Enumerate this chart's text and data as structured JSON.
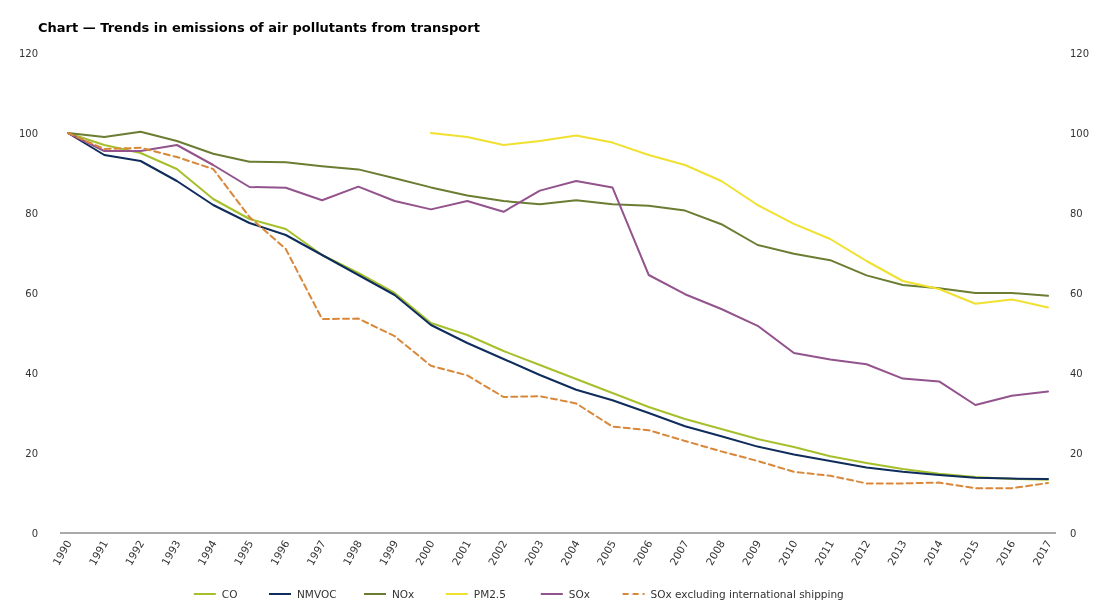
{
  "chart_data": {
    "type": "line",
    "title": "Chart — Trends in emissions of air pollutants from transport",
    "categories": [
      "1990",
      "1991",
      "1992",
      "1993",
      "1994",
      "1995",
      "1996",
      "1997",
      "1998",
      "1999",
      "2000",
      "2001",
      "2002",
      "2003",
      "2004",
      "2005",
      "2006",
      "2007",
      "2008",
      "2009",
      "2010",
      "2011",
      "2012",
      "2013",
      "2014",
      "2015",
      "2016",
      "2017"
    ],
    "ylim": [
      0,
      120
    ],
    "yticks": [
      0,
      20,
      40,
      60,
      80,
      100,
      120
    ],
    "y2lim": [
      0,
      120
    ],
    "y2ticks": [
      0,
      20,
      40,
      60,
      80,
      100,
      120
    ],
    "grid": false,
    "legend": "bottom",
    "marker": "none",
    "series": [
      {
        "name": "CO",
        "color": "#a6c02c",
        "line_style": "solid",
        "values": [
          100,
          97,
          95,
          91,
          83.5,
          78.5,
          76,
          69.5,
          65,
          60,
          52.5,
          49.5,
          45.5,
          42,
          38.5,
          35,
          31.5,
          28.5,
          26,
          23.5,
          21.5,
          19.2,
          17.5,
          16,
          14.8,
          14,
          13.5,
          13.3
        ]
      },
      {
        "name": "NMVOC",
        "color": "#0e2c5c",
        "line_style": "solid",
        "values": [
          100,
          94.5,
          93,
          88,
          82,
          77.5,
          74.5,
          69.5,
          64.5,
          59.5,
          52,
          47.5,
          43.5,
          39.5,
          35.8,
          33.2,
          30,
          26.7,
          24.2,
          21.6,
          19.6,
          18,
          16.4,
          15.3,
          14.5,
          13.8,
          13.6,
          13.5
        ]
      },
      {
        "name": "NOx",
        "color": "#6b7d32",
        "line_style": "solid",
        "values": [
          100,
          99,
          100.3,
          98,
          94.8,
          92.8,
          92.7,
          91.7,
          90.9,
          88.7,
          86.4,
          84.4,
          83,
          82.2,
          83.2,
          82.2,
          81.8,
          80.6,
          77.2,
          72,
          69.8,
          68.2,
          64.4,
          62,
          61.2,
          60,
          60,
          59.3
        ]
      },
      {
        "name": "PM2.5",
        "color": "#f0e030",
        "line_style": "solid",
        "values": [
          null,
          null,
          null,
          null,
          null,
          null,
          null,
          null,
          null,
          null,
          100,
          99,
          97,
          98,
          99.4,
          97.6,
          94.5,
          92,
          88,
          82,
          77.3,
          73.5,
          68,
          63,
          61,
          57.3,
          58.4,
          56.4
        ]
      },
      {
        "name": "SOx",
        "color": "#93538c",
        "line_style": "solid",
        "values": [
          100,
          95.5,
          95.5,
          97,
          92,
          86.5,
          86.3,
          83.2,
          86.6,
          83,
          80.9,
          83,
          80.3,
          85.6,
          88,
          86.4,
          64.5,
          59.7,
          56,
          51.8,
          45,
          43.4,
          42.2,
          38.6,
          37.9,
          32,
          34.3,
          35.4
        ]
      },
      {
        "name": "SOx excluding international shipping",
        "color": "#d9883a",
        "line_style": "dashed",
        "values": [
          100,
          96,
          96.3,
          94,
          91,
          79,
          71,
          53.5,
          53.6,
          49.2,
          41.8,
          39.4,
          34,
          34.2,
          32.4,
          26.6,
          25.7,
          23,
          20.4,
          18,
          15.3,
          14.3,
          12.4,
          12.4,
          12.6,
          11.2,
          11.2,
          12.5
        ]
      }
    ]
  }
}
